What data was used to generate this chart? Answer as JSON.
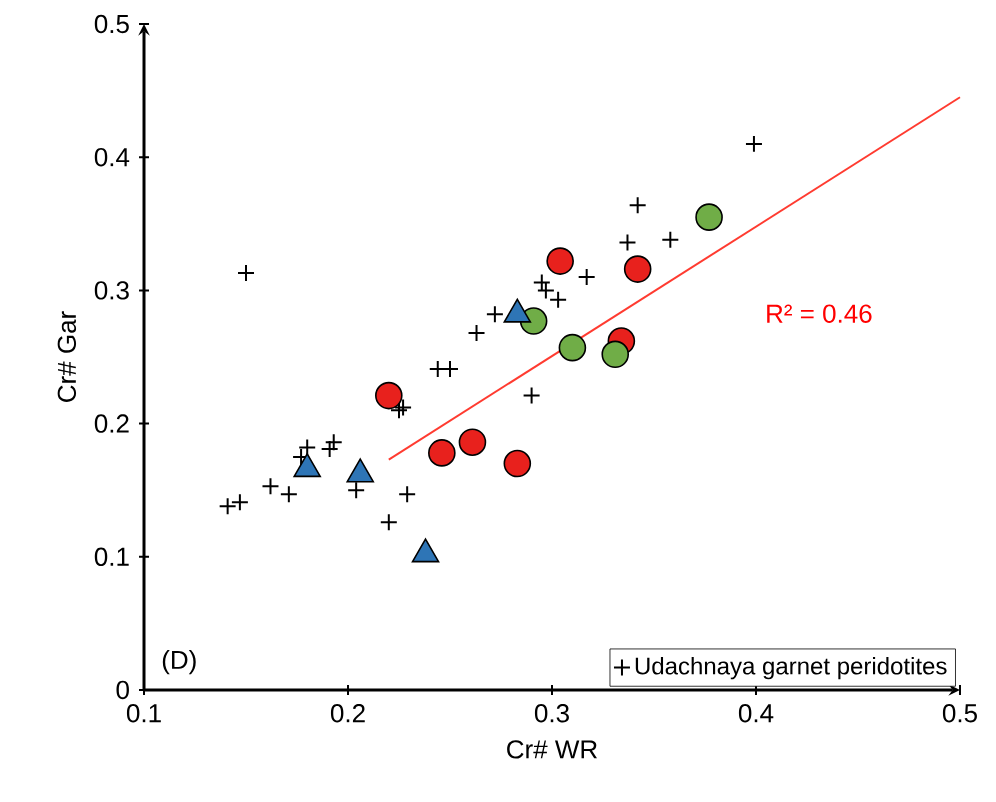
{
  "chart_data": {
    "type": "scatter",
    "xlabel": "Cr# WR",
    "ylabel": "Cr# Gar",
    "xlim": [
      0.1,
      0.5
    ],
    "ylim": [
      0,
      0.5
    ],
    "xticks": [
      0.1,
      0.2,
      0.3,
      0.4,
      0.5
    ],
    "yticks": [
      0,
      0.1,
      0.2,
      0.3,
      0.4,
      0.5
    ],
    "grid": false,
    "legend": "bottom right",
    "series": [
      {
        "name": "Udachnaya garnet peridotites",
        "color": "#000000",
        "marker": "cross",
        "x": [
          0.15,
          0.141,
          0.147,
          0.162,
          0.171,
          0.18,
          0.177,
          0.191,
          0.193,
          0.204,
          0.22,
          0.229,
          0.227,
          0.225,
          0.244,
          0.25,
          0.263,
          0.272,
          0.29,
          0.295,
          0.297,
          0.303,
          0.317,
          0.337,
          0.342,
          0.358,
          0.399
        ],
        "values": [
          0.313,
          0.138,
          0.141,
          0.153,
          0.147,
          0.182,
          0.175,
          0.181,
          0.186,
          0.15,
          0.126,
          0.147,
          0.212,
          0.21,
          0.241,
          0.241,
          0.268,
          0.282,
          0.221,
          0.306,
          0.3,
          0.293,
          0.31,
          0.336,
          0.364,
          0.338,
          0.41
        ]
      },
      {
        "color": "#e8211d",
        "marker": "circle",
        "x": [
          0.22,
          0.246,
          0.261,
          0.283,
          0.304,
          0.342,
          0.334
        ],
        "values": [
          0.221,
          0.178,
          0.186,
          0.17,
          0.322,
          0.316,
          0.262
        ]
      },
      {
        "color": "#70ad47",
        "marker": "circle",
        "x": [
          0.291,
          0.31,
          0.331,
          0.377
        ],
        "values": [
          0.277,
          0.257,
          0.252,
          0.355
        ]
      },
      {
        "color": "#2e75b6",
        "marker": "triangle",
        "x": [
          0.18,
          0.206,
          0.238,
          0.283
        ],
        "values": [
          0.166,
          0.162,
          0.102,
          0.282
        ]
      },
      {
        "type": "line",
        "color": "#ff3b30",
        "marker": "none",
        "x": [
          0.22,
          0.5
        ],
        "values": [
          0.173,
          0.445
        ]
      }
    ],
    "annotations": [
      "R² = 0.46",
      "(D)"
    ]
  }
}
